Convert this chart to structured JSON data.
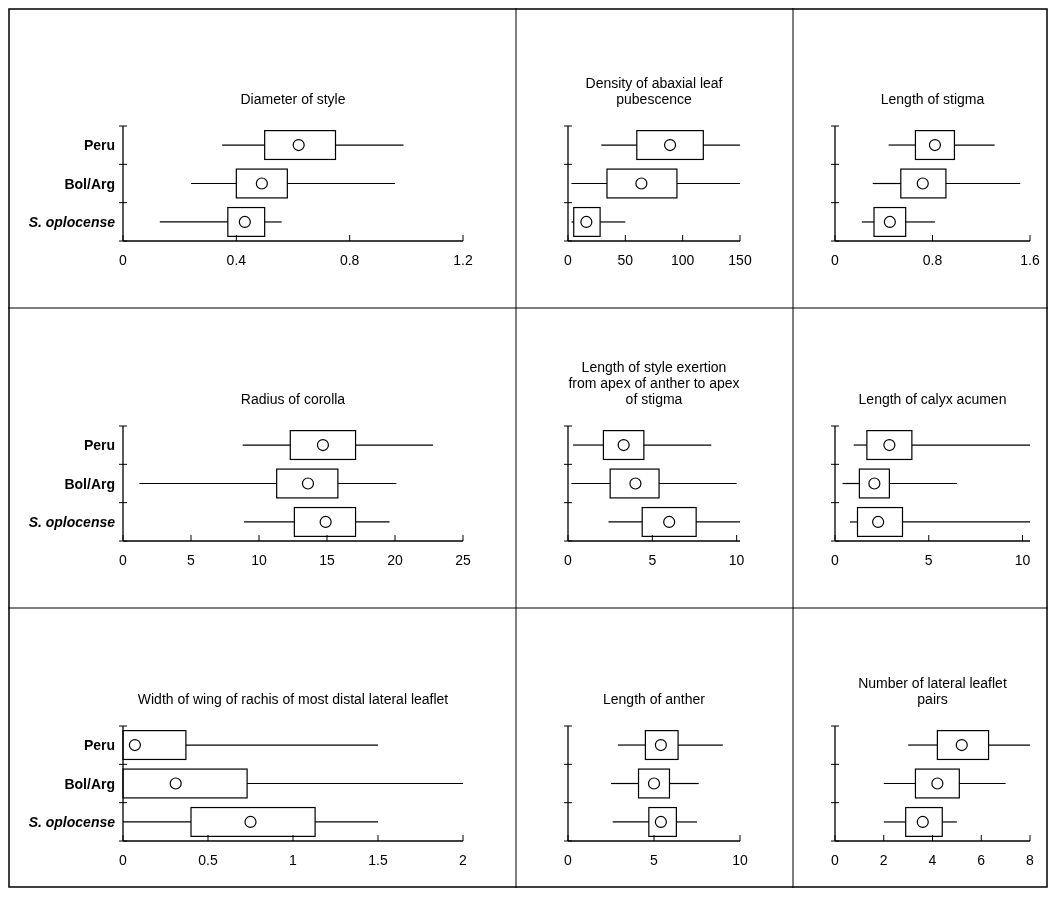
{
  "chart_data": [
    {
      "type": "box",
      "orientation": "horizontal",
      "title": "Diameter of style",
      "categories": [
        "Peru",
        "Bol/Arg",
        "S. oplocense"
      ],
      "xlim": [
        0,
        1.2
      ],
      "xticks": [
        0,
        0.4,
        0.8,
        1.2
      ],
      "boxes": [
        {
          "low": 0.35,
          "q1": 0.5,
          "median": 0.62,
          "q3": 0.75,
          "high": 0.99
        },
        {
          "low": 0.24,
          "q1": 0.4,
          "median": 0.49,
          "q3": 0.58,
          "high": 0.96
        },
        {
          "low": 0.13,
          "q1": 0.37,
          "median": 0.43,
          "q3": 0.5,
          "high": 0.56
        }
      ]
    },
    {
      "type": "box",
      "orientation": "horizontal",
      "title": "Density of abaxial leaf pubescence",
      "categories": [
        null,
        null,
        null
      ],
      "tick_labels": "x",
      "xlim": [
        0,
        150
      ],
      "xticks": [
        0,
        50,
        100,
        150
      ],
      "boxes": [
        {
          "low": 29,
          "q1": 60,
          "median": 89,
          "q3": 118,
          "high": 150
        },
        {
          "low": 3,
          "q1": 34,
          "median": 64,
          "q3": 95,
          "high": 150
        },
        {
          "low": 3,
          "q1": 5,
          "median": 16,
          "q3": 28,
          "high": 50
        }
      ]
    },
    {
      "type": "box",
      "orientation": "horizontal",
      "title": "Length of stigma",
      "categories": [
        null,
        null,
        null
      ],
      "tick_labels": "x",
      "xlim": [
        0,
        1.6
      ],
      "xticks": [
        0,
        0.8,
        1.6
      ],
      "boxes": [
        {
          "low": 0.44,
          "q1": 0.66,
          "median": 0.82,
          "q3": 0.98,
          "high": 1.31
        },
        {
          "low": 0.31,
          "q1": 0.54,
          "median": 0.72,
          "q3": 0.91,
          "high": 1.52
        },
        {
          "low": 0.22,
          "q1": 0.32,
          "median": 0.45,
          "q3": 0.58,
          "high": 0.82
        }
      ]
    },
    {
      "type": "box",
      "orientation": "horizontal",
      "title": "Radius of corolla",
      "categories": [
        "Peru",
        "Bol/Arg",
        "S. oplocense"
      ],
      "xlim": [
        0,
        25
      ],
      "xticks": [
        0,
        5,
        10,
        15,
        20,
        25
      ],
      "boxes": [
        {
          "low": 8.8,
          "q1": 12.3,
          "median": 14.7,
          "q3": 17.1,
          "high": 22.8
        },
        {
          "low": 1.2,
          "q1": 11.3,
          "median": 13.6,
          "q3": 15.8,
          "high": 20.1
        },
        {
          "low": 8.9,
          "q1": 12.6,
          "median": 14.9,
          "q3": 17.1,
          "high": 19.6
        }
      ]
    },
    {
      "type": "box",
      "orientation": "horizontal",
      "title": "Length of style exertion from apex of anther to apex of stigma",
      "categories": [
        null,
        null,
        null
      ],
      "tick_labels": "x",
      "xlim": [
        0,
        10.2
      ],
      "xticks": [
        0,
        5,
        10
      ],
      "boxes": [
        {
          "low": 0.3,
          "q1": 2.1,
          "median": 3.3,
          "q3": 4.5,
          "high": 8.5
        },
        {
          "low": 0.2,
          "q1": 2.5,
          "median": 4.0,
          "q3": 5.4,
          "high": 10.0
        },
        {
          "low": 2.4,
          "q1": 4.4,
          "median": 6.0,
          "q3": 7.6,
          "high": 10.2
        }
      ]
    },
    {
      "type": "box",
      "orientation": "horizontal",
      "title": "Length of calyx acumen",
      "categories": [
        null,
        null,
        null
      ],
      "tick_labels": "x",
      "xlim": [
        0,
        10.4
      ],
      "xticks": [
        0,
        5,
        10
      ],
      "boxes": [
        {
          "low": 1.0,
          "q1": 1.7,
          "median": 2.9,
          "q3": 4.1,
          "high": 10.4
        },
        {
          "low": 0.4,
          "q1": 1.3,
          "median": 2.1,
          "q3": 2.9,
          "high": 6.5
        },
        {
          "low": 0.8,
          "q1": 1.2,
          "median": 2.3,
          "q3": 3.6,
          "high": 10.4
        }
      ]
    },
    {
      "type": "box",
      "orientation": "horizontal",
      "title": "Width of wing of rachis of most distal lateral leaflet",
      "categories": [
        "Peru",
        "Bol/Arg",
        "S. oplocense"
      ],
      "xlim": [
        0,
        2
      ],
      "xticks": [
        0,
        0.5,
        1,
        1.5,
        2
      ],
      "boxes": [
        {
          "low": 0,
          "q1": 0,
          "median": 0.07,
          "q3": 0.37,
          "high": 1.5
        },
        {
          "low": 0,
          "q1": 0,
          "median": 0.31,
          "q3": 0.73,
          "high": 2.0
        },
        {
          "low": 0,
          "q1": 0.4,
          "median": 0.75,
          "q3": 1.13,
          "high": 1.5
        }
      ]
    },
    {
      "type": "box",
      "orientation": "horizontal",
      "title": "Length of anther",
      "categories": [
        null,
        null,
        null
      ],
      "tick_labels": "x",
      "xlim": [
        0,
        10
      ],
      "xticks": [
        0,
        5,
        10
      ],
      "boxes": [
        {
          "low": 2.9,
          "q1": 4.5,
          "median": 5.4,
          "q3": 6.4,
          "high": 9.0
        },
        {
          "low": 2.5,
          "q1": 4.1,
          "median": 5.0,
          "q3": 5.9,
          "high": 7.6
        },
        {
          "low": 2.6,
          "q1": 4.7,
          "median": 5.4,
          "q3": 6.3,
          "high": 7.5
        }
      ]
    },
    {
      "type": "box",
      "orientation": "horizontal",
      "title": "Number of lateral leaflet pairs",
      "categories": [
        null,
        null,
        null
      ],
      "tick_labels": "x",
      "xlim": [
        0,
        8
      ],
      "xticks": [
        0,
        2,
        4,
        6,
        8
      ],
      "boxes": [
        {
          "low": 3.0,
          "q1": 4.2,
          "median": 5.2,
          "q3": 6.3,
          "high": 8.0
        },
        {
          "low": 2.0,
          "q1": 3.3,
          "median": 4.2,
          "q3": 5.1,
          "high": 7.0
        },
        {
          "low": 2.0,
          "q1": 2.9,
          "median": 3.6,
          "q3": 4.4,
          "high": 5.0
        }
      ]
    }
  ]
}
